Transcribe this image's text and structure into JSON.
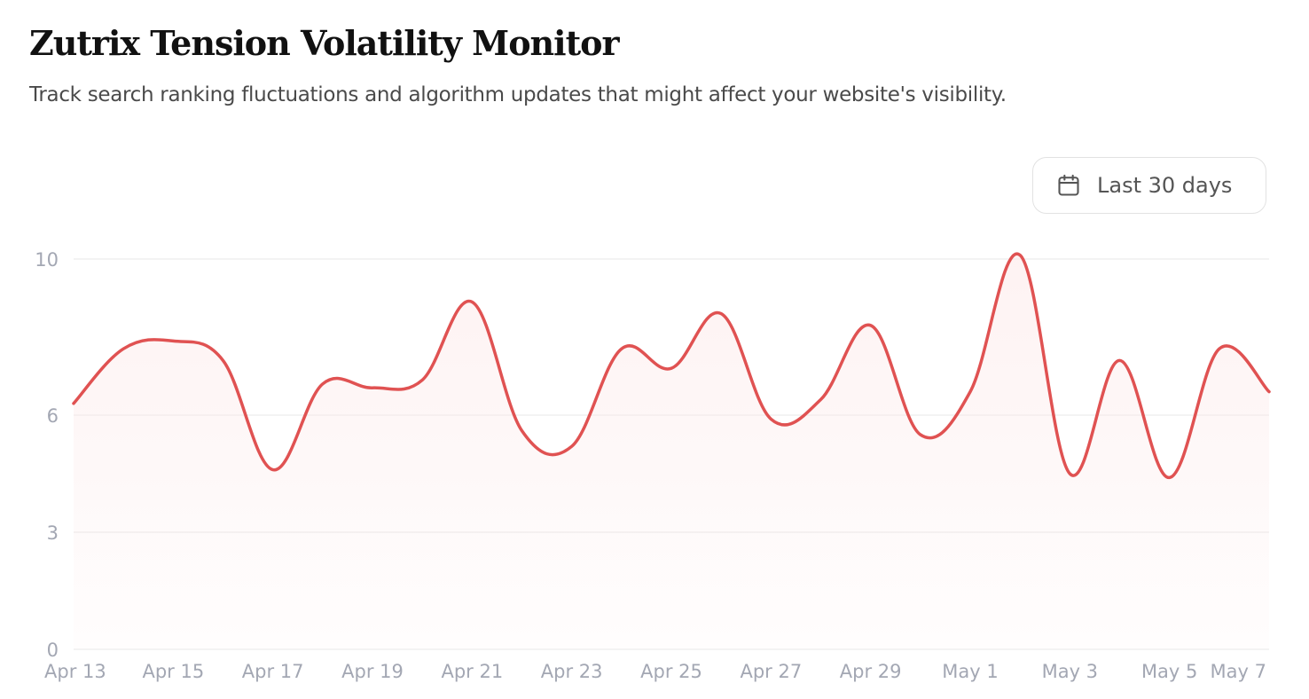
{
  "header": {
    "title": "Zutrix Tension Volatility Monitor",
    "subtitle": "Track search ranking fluctuations and algorithm updates that might affect your website's visibility."
  },
  "controls": {
    "range_label": "Last 30 days",
    "range_icon": "calendar-icon"
  },
  "colors": {
    "line": "#e05252",
    "fill": "#fde8e8",
    "grid": "#ececec",
    "tick_text": "#a3a7b3"
  },
  "chart_data": {
    "type": "area",
    "x": [
      "2024-04-13",
      "2024-04-14",
      "2024-04-15",
      "2024-04-16",
      "2024-04-17",
      "2024-04-18",
      "2024-04-19",
      "2024-04-20",
      "2024-04-21",
      "2024-04-22",
      "2024-04-23",
      "2024-04-24",
      "2024-04-25",
      "2024-04-26",
      "2024-04-27",
      "2024-04-28",
      "2024-04-29",
      "2024-04-30",
      "2024-05-01",
      "2024-05-02",
      "2024-05-03",
      "2024-05-04",
      "2024-05-05",
      "2024-05-06",
      "2024-05-07"
    ],
    "series": [
      {
        "values": [
          6.3,
          7.7,
          7.9,
          7.4,
          4.6,
          6.8,
          6.7,
          6.9,
          8.9,
          5.6,
          5.2,
          7.7,
          7.2,
          8.6,
          5.9,
          6.4,
          8.3,
          5.5,
          6.6,
          10.1,
          4.5,
          7.4,
          4.4,
          7.7,
          6.6
        ]
      }
    ],
    "x_tick_labels": [
      "Apr 13",
      "Apr 15",
      "Apr 17",
      "Apr 19",
      "Apr 21",
      "Apr 23",
      "Apr 25",
      "Apr 27",
      "Apr 29",
      "May 1",
      "May 3",
      "May 5",
      "May 7"
    ],
    "y_ticks": [
      0,
      3,
      6,
      10
    ],
    "ylim": [
      0,
      10
    ],
    "grid": true,
    "title": "",
    "xlabel": "",
    "ylabel": ""
  }
}
